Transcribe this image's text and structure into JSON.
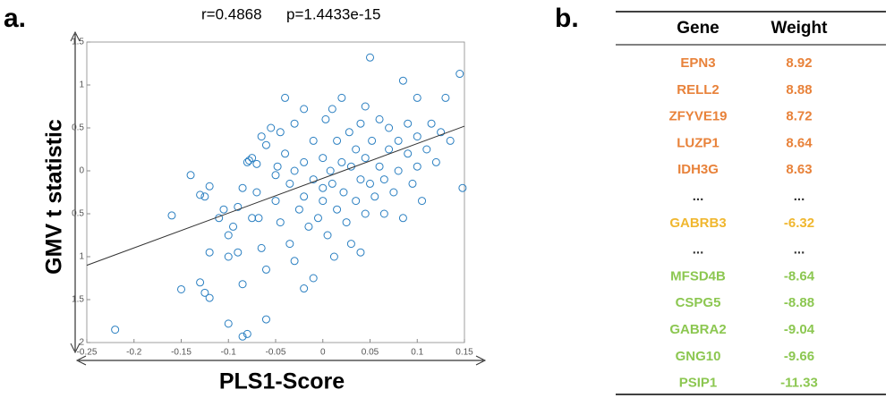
{
  "panel_labels": [
    "a.",
    "b."
  ],
  "chart_data": {
    "type": "scatter",
    "title": [
      "r=0.4868",
      "p=1.4433e-15"
    ],
    "x_label": "PLS1-Score",
    "y_label": "GMV t statistic",
    "color": "#2a7fc1",
    "xlim": [
      -0.25,
      0.15
    ],
    "ylim": [
      -2,
      1.5
    ],
    "xticks": [
      -0.25,
      -0.2,
      -0.15,
      -0.1,
      -0.05,
      0,
      0.05,
      0.1,
      0.15
    ],
    "yticks": [
      {
        "value": -2,
        "label": "2"
      },
      {
        "value": -1.5,
        "label": "1.5"
      },
      {
        "value": -1,
        "label": "1"
      },
      {
        "value": -0.5,
        "label": "0.5"
      },
      0,
      0.5,
      1,
      1.5
    ],
    "x": [
      -0.22,
      -0.15,
      -0.13,
      -0.125,
      -0.12,
      -0.1,
      -0.085,
      -0.08,
      -0.06,
      -0.02,
      -0.085,
      -0.16,
      -0.14,
      -0.13,
      -0.125,
      -0.12,
      -0.11,
      -0.105,
      -0.1,
      -0.095,
      -0.09,
      -0.085,
      -0.08,
      -0.078,
      -0.075,
      -0.07,
      -0.07,
      -0.068,
      -0.065,
      -0.06,
      -0.06,
      -0.055,
      -0.05,
      -0.05,
      -0.048,
      -0.045,
      -0.04,
      -0.04,
      -0.035,
      -0.035,
      -0.03,
      -0.03,
      -0.03,
      -0.025,
      -0.02,
      -0.02,
      -0.02,
      -0.015,
      -0.01,
      -0.01,
      -0.01,
      -0.005,
      0,
      0,
      0,
      0.003,
      0.005,
      0.008,
      0.01,
      0.01,
      0.012,
      0.015,
      0.015,
      0.02,
      0.02,
      0.022,
      0.025,
      0.028,
      0.03,
      0.03,
      0.035,
      0.035,
      0.04,
      0.04,
      0.045,
      0.045,
      0.05,
      0.05,
      0.052,
      0.055,
      0.06,
      0.06,
      0.065,
      0.065,
      0.07,
      0.07,
      0.075,
      0.08,
      0.08,
      0.085,
      0.085,
      0.09,
      0.09,
      0.095,
      0.1,
      0.1,
      0.1,
      0.105,
      0.11,
      0.115,
      0.12,
      0.125,
      0.13,
      0.135,
      0.145,
      0.148,
      -0.12,
      -0.1,
      -0.09,
      -0.075,
      0.04,
      0.045,
      -0.045,
      -0.065
    ],
    "values": [
      -1.85,
      -1.38,
      -1.3,
      -1.42,
      -1.48,
      -1.78,
      -1.93,
      -1.9,
      -1.73,
      -1.37,
      -1.32,
      -0.52,
      -0.05,
      -0.28,
      -0.3,
      -0.18,
      -0.55,
      -0.45,
      -0.75,
      -0.65,
      -0.42,
      -0.2,
      0.1,
      0.12,
      0.15,
      0.08,
      -0.25,
      -0.55,
      -0.9,
      -1.15,
      0.3,
      0.5,
      -0.05,
      -0.35,
      0.05,
      -0.6,
      0.85,
      0.2,
      -0.15,
      -0.85,
      0.55,
      0,
      -1.05,
      -0.45,
      0.72,
      0.1,
      -0.3,
      -0.65,
      0.35,
      -0.1,
      -1.25,
      -0.55,
      0.15,
      -0.2,
      -0.35,
      0.6,
      -0.75,
      0,
      0.72,
      -0.15,
      -1,
      0.35,
      -0.45,
      0.85,
      0.1,
      -0.25,
      -0.6,
      0.45,
      -0.85,
      0.05,
      -0.35,
      0.25,
      -0.1,
      0.55,
      -0.5,
      0.15,
      1.32,
      -0.15,
      0.35,
      -0.3,
      0.6,
      0.05,
      -0.1,
      -0.5,
      0.25,
      0.5,
      -0.25,
      0.35,
      0,
      1.05,
      -0.55,
      0.2,
      0.55,
      -0.15,
      0.85,
      0.4,
      0.05,
      -0.35,
      0.25,
      0.55,
      0.1,
      0.45,
      0.85,
      0.35,
      1.13,
      -0.2,
      -0.95,
      -1,
      -0.95,
      -0.55,
      -0.95,
      0.75,
      0.45,
      0.4
    ],
    "fit_line": {
      "x": [
        -0.25,
        0.15
      ],
      "y": [
        -1.1,
        0.52
      ]
    }
  },
  "table": {
    "header": [
      "Gene",
      "Weight"
    ],
    "rows": [
      {
        "gene": "EPN3",
        "weight": 8.92,
        "color": "#e8823a"
      },
      {
        "gene": "RELL2",
        "weight": 8.88,
        "color": "#e8823a"
      },
      {
        "gene": "ZFYVE19",
        "weight": 8.72,
        "color": "#e8823a"
      },
      {
        "gene": "LUZP1",
        "weight": 8.64,
        "color": "#e8823a"
      },
      {
        "gene": "IDH3G",
        "weight": 8.63,
        "color": "#e8823a"
      },
      {
        "gene": "...",
        "weight": "...",
        "color": "#333333"
      },
      {
        "gene": "GABRB3",
        "weight": -6.32,
        "color": "#f0b72f"
      },
      {
        "gene": "...",
        "weight": "...",
        "color": "#333333"
      },
      {
        "gene": "MFSD4B",
        "weight": -8.64,
        "color": "#8cc751"
      },
      {
        "gene": "CSPG5",
        "weight": -8.88,
        "color": "#8cc751"
      },
      {
        "gene": "GABRA2",
        "weight": -9.04,
        "color": "#8cc751"
      },
      {
        "gene": "GNG10",
        "weight": -9.66,
        "color": "#8cc751"
      },
      {
        "gene": "PSIP1",
        "weight": -11.33,
        "color": "#8cc751"
      }
    ]
  }
}
